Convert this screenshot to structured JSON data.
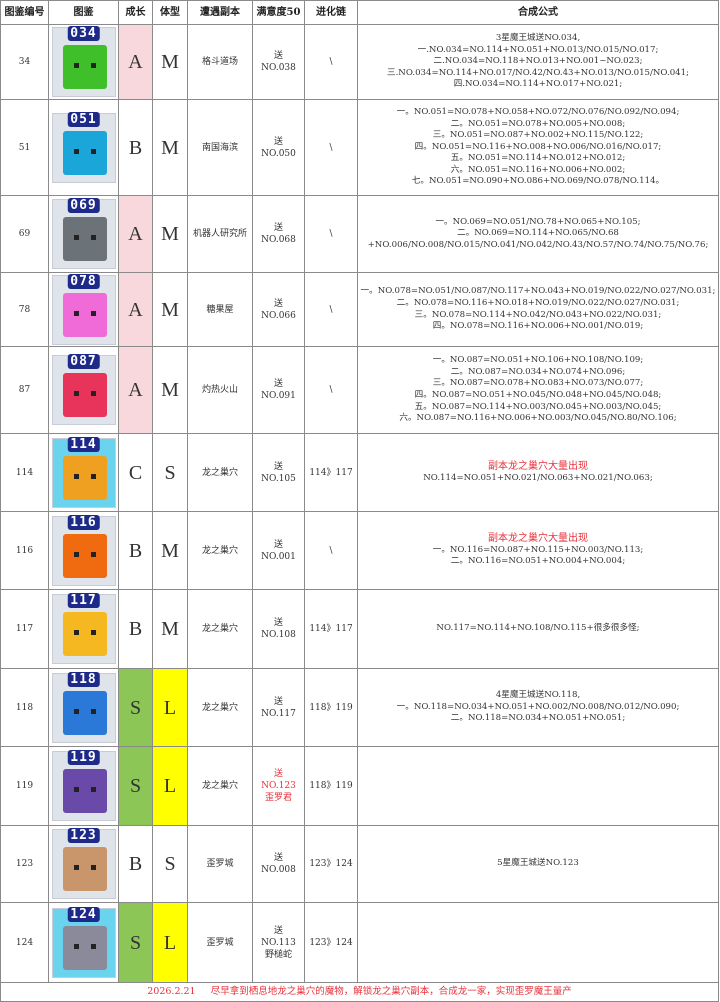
{
  "headers": [
    "图鉴编号",
    "图鉴",
    "成长",
    "体型",
    "遭遇副本",
    "满意度50",
    "进化链",
    "合成公式"
  ],
  "colors": {
    "growth_A": "#f8d8dc",
    "growth_S": "#8cc657",
    "size_L": "#ffff00",
    "note_red": "#e8323c"
  },
  "rows": [
    {
      "id": "34",
      "sprite": "034",
      "sprite_color": "#3fbf2a",
      "growth": "A",
      "size": "M",
      "dungeon": "格斗道场",
      "satisfaction": [
        "送",
        "NO.038"
      ],
      "chain": "\\",
      "formula": [
        "3星魔王城送NO.034,",
        "一.NO.034=NO.114+NO.051+NO.013/NO.015/NO.017;",
        "二.NO.034=NO.118+NO.013+NO.001~NO.023;",
        "三.NO.034=NO.114+NO.017/NO.42/NO.43+NO.013/NO.015/NO.041;",
        "四.NO.034=NO.114+NO.017+NO.021;"
      ]
    },
    {
      "id": "51",
      "sprite": "051",
      "sprite_color": "#1aa6d8",
      "growth": "B",
      "size": "M",
      "dungeon": "南国海滨",
      "satisfaction": [
        "送",
        "NO.050"
      ],
      "chain": "\\",
      "formula": [
        "一。NO.051=NO.078+NO.058+NO.072/NO.076/NO.092/NO.094;",
        "二。NO.051=NO.078+NO.005+NO.008;",
        "三。NO.051=NO.087+NO.002+NO.115/NO.122;",
        "四。NO.051=NO.116+NO.008+NO.006/NO.016/NO.017;",
        "五。NO.051=NO.114+NO.012+NO.012;",
        "六。NO.051=NO.116+NO.006+NO.002;",
        "七。NO.051=NO.090+NO.086+NO.069/NO.078/NO.114。"
      ]
    },
    {
      "id": "69",
      "sprite": "069",
      "sprite_color": "#6c7378",
      "growth": "A",
      "size": "M",
      "dungeon": "机器人研究所",
      "satisfaction": [
        "送",
        "NO.068"
      ],
      "chain": "\\",
      "formula": [
        "一。NO.069=NO.051/NO.78+NO.065+NO.105;",
        "二。NO.069=NO.114+NO.065/NO.68",
        "+NO.006/NO.008/NO.015/NO.041/NO.042/NO.43/NO.57/NO.74/NO.75/NO.76;"
      ]
    },
    {
      "id": "78",
      "sprite": "078",
      "sprite_color": "#f06ad8",
      "growth": "A",
      "size": "M",
      "dungeon": "糖果屋",
      "satisfaction": [
        "送",
        "NO.066"
      ],
      "chain": "\\",
      "formula": [
        "一。NO.078=NO.051/NO.087/NO.117+NO.043+NO.019/NO.022/NO.027/NO.031;",
        "二。NO.078=NO.116+NO.018+NO.019/NO.022/NO.027/NO.031;",
        "三。NO.078=NO.114+NO.042/NO.043+NO.022/NO.031;",
        "四。NO.078=NO.116+NO.006+NO.001/NO.019;"
      ]
    },
    {
      "id": "87",
      "sprite": "087",
      "sprite_color": "#e8345a",
      "growth": "A",
      "size": "M",
      "dungeon": "灼热火山",
      "satisfaction": [
        "送",
        "NO.091"
      ],
      "chain": "\\",
      "formula": [
        "一。NO.087=NO.051+NO.106+NO.108/NO.109;",
        "二。NO.087=NO.034+NO.074+NO.096;",
        "三。NO.087=NO.078+NO.083+NO.073/NO.077;",
        "四。NO.087=NO.051+NO.045/NO.048+NO.045/NO.048;",
        "五。NO.087=NO.114+NO.003/NO.045+NO.003/NO.045;",
        "六。NO.087=NO.116+NO.006+NO.003/NO.045/NO.80/NO.106;"
      ]
    },
    {
      "id": "114",
      "sprite": "114",
      "sprite_color": "#f0a020",
      "framed": true,
      "growth": "C",
      "size": "S",
      "dungeon": "龙之巢穴",
      "satisfaction": [
        "送",
        "NO.105"
      ],
      "chain": "114》117",
      "note": "副本龙之巢穴大量出现",
      "formula": [
        "NO.114=NO.051+NO.021/NO.063+NO.021/NO.063;"
      ]
    },
    {
      "id": "116",
      "sprite": "116",
      "sprite_color": "#f06a10",
      "growth": "B",
      "size": "M",
      "dungeon": "龙之巢穴",
      "satisfaction": [
        "送",
        "NO.001"
      ],
      "chain": "\\",
      "note": "副本龙之巢穴大量出现",
      "formula": [
        "一。NO.116=NO.087+NO.115+NO.003/NO.113;",
        "二。NO.116=NO.051+NO.004+NO.004;"
      ]
    },
    {
      "id": "117",
      "sprite": "117",
      "sprite_color": "#f5b820",
      "growth": "B",
      "size": "M",
      "dungeon": "龙之巢穴",
      "satisfaction": [
        "送",
        "NO.108"
      ],
      "chain": "114》117",
      "formula": [
        "NO.117=NO.114+NO.108/NO.115+很多很多怪;"
      ]
    },
    {
      "id": "118",
      "sprite": "118",
      "sprite_color": "#2a78d8",
      "growth": "S",
      "size": "L",
      "dungeon": "龙之巢穴",
      "satisfaction": [
        "送",
        "NO.117"
      ],
      "chain": "118》119",
      "formula": [
        "4星魔王城送NO.118,",
        "一。NO.118=NO.034+NO.051+NO.002/NO.008/NO.012/NO.090;",
        "二。NO.118=NO.034+NO.051+NO.051;"
      ]
    },
    {
      "id": "119",
      "sprite": "119",
      "sprite_color": "#6a4aa8",
      "growth": "S",
      "size": "L",
      "dungeon": "龙之巢穴",
      "satisfaction": [
        "送",
        "NO.123",
        "歪罗君"
      ],
      "satisfaction_red": true,
      "chain": "118》119",
      "formula": []
    },
    {
      "id": "123",
      "sprite": "123",
      "sprite_color": "#c8966a",
      "growth": "B",
      "size": "S",
      "dungeon": "歪罗城",
      "satisfaction": [
        "送",
        "NO.008"
      ],
      "chain": "123》124",
      "formula": [
        "5星魔王城送NO.123"
      ]
    },
    {
      "id": "124",
      "sprite": "124",
      "sprite_color": "#8a8a9a",
      "framed": true,
      "growth": "S",
      "size": "L",
      "dungeon": "歪罗城",
      "satisfaction": [
        "送",
        "NO.113",
        "野槌蛇"
      ],
      "chain": "123》124",
      "formula": []
    }
  ],
  "footer": {
    "date": "2026.2.21",
    "text": "尽早拿到栖息地龙之巢穴的魔物，解锁龙之巢穴副本，合成龙一家，实现歪罗魔王量产"
  }
}
